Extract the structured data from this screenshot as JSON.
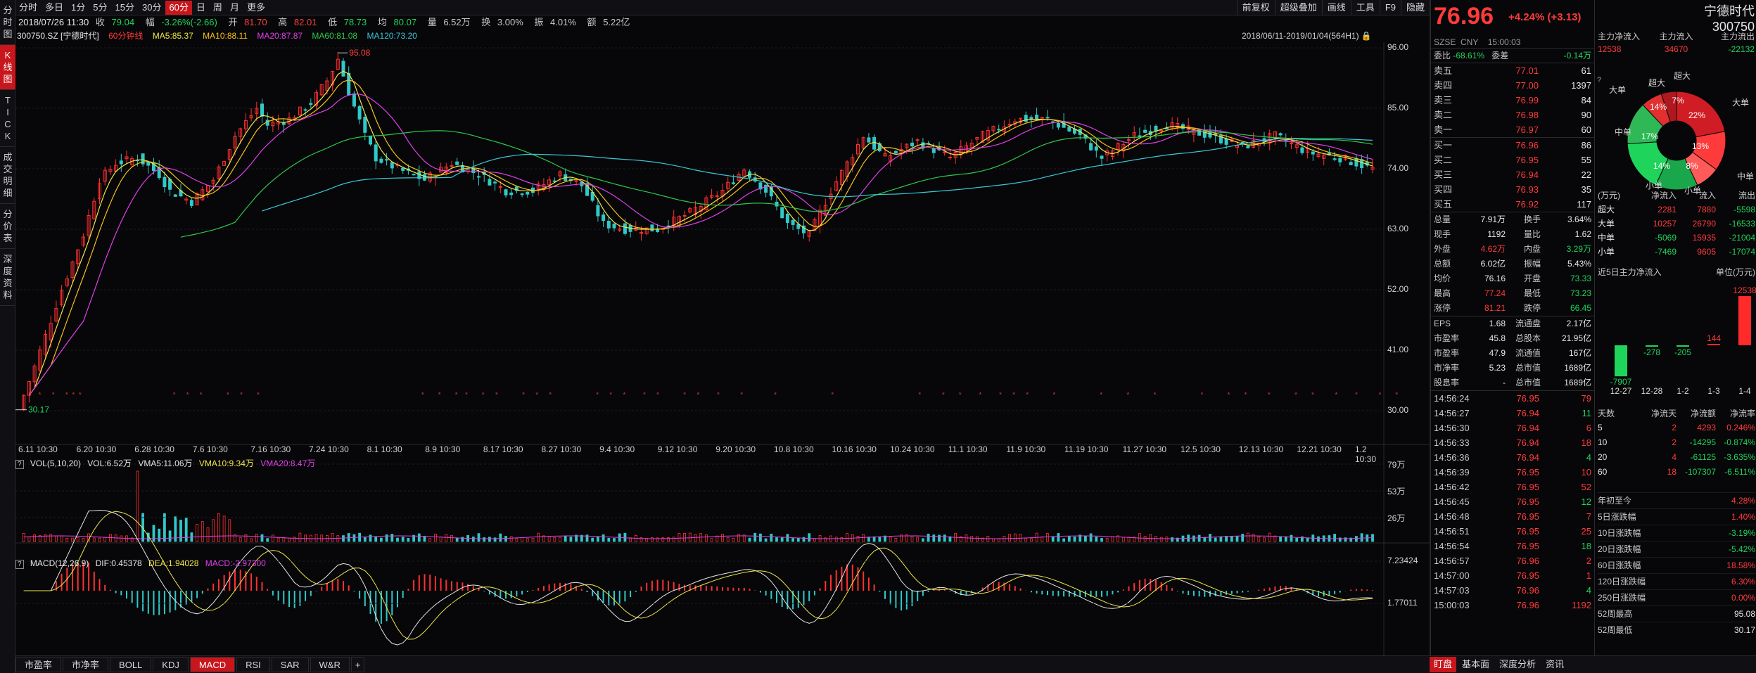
{
  "left_nav": [
    "分时图",
    "K线图",
    "TICK",
    "成交明细",
    "分价表",
    "深度资料"
  ],
  "left_nav_active": 1,
  "toolbar": {
    "periods": [
      "分时",
      "多日",
      "1分",
      "5分",
      "15分",
      "30分",
      "60分",
      "日",
      "周",
      "月",
      "更多"
    ],
    "active": 6,
    "right": [
      "前复权",
      "超级叠加",
      "画线",
      "工具",
      "F9",
      "隐藏"
    ]
  },
  "quote": {
    "date": "2018/07/26 11:30",
    "close_label": "收",
    "close": "79.04",
    "chg_label": "幅",
    "chg": "-3.26%(-2.66)",
    "open_label": "开",
    "open": "81.70",
    "high_label": "高",
    "high": "82.01",
    "low_label": "低",
    "low": "78.73",
    "avg_label": "均",
    "avg": "80.07",
    "vol_label": "量",
    "vol": "6.52万",
    "turn_label": "换",
    "turn": "3.00%",
    "amp_label": "振",
    "amp": "4.01%",
    "amt_label": "额",
    "amt": "5.22亿"
  },
  "ma_legend": {
    "symbol": "300750.SZ [宁德时代]",
    "kind": "60分钟线",
    "ma5": "MA5:85.37",
    "ma10": "MA10:88.11",
    "ma20": "MA20:87.87",
    "ma60": "MA60:81.08",
    "ma120": "MA120:73.20"
  },
  "date_range": "2018/06/11-2019/01/04(564H1)",
  "annotations": {
    "high": "95.08",
    "low": "30.17"
  },
  "chart_data": {
    "type": "line",
    "price_axis": [
      "96.00",
      "85.00",
      "74.00",
      "63.00",
      "52.00",
      "41.00",
      "30.00"
    ],
    "x_labels": [
      "6.11 10:30",
      "6.20 10:30",
      "6.28 10:30",
      "7.6 10:30",
      "7.16 10:30",
      "7.24 10:30",
      "8.1 10:30",
      "8.9 10:30",
      "8.17 10:30",
      "8.27 10:30",
      "9.4 10:30",
      "9.12 10:30",
      "9.20 10:30",
      "10.8 10:30",
      "10.16 10:30",
      "10.24 10:30",
      "11.1 10:30",
      "11.9 10:30",
      "11.19 10:30",
      "11.27 10:30",
      "12.5 10:30",
      "12.13 10:30",
      "12.21 10:30",
      "1.2 10:30"
    ],
    "price_keypoints": [
      [
        0,
        30.2
      ],
      [
        3,
        38
      ],
      [
        8,
        52
      ],
      [
        12,
        62
      ],
      [
        15,
        72
      ],
      [
        18,
        75
      ],
      [
        22,
        76
      ],
      [
        26,
        73
      ],
      [
        28,
        70
      ],
      [
        32,
        68
      ],
      [
        36,
        72
      ],
      [
        40,
        80
      ],
      [
        44,
        85
      ],
      [
        46,
        82
      ],
      [
        50,
        83
      ],
      [
        54,
        86
      ],
      [
        57,
        90
      ],
      [
        59,
        94
      ],
      [
        61,
        88
      ],
      [
        64,
        80
      ],
      [
        66,
        76
      ],
      [
        70,
        74
      ],
      [
        75,
        72
      ],
      [
        80,
        75
      ],
      [
        85,
        73
      ],
      [
        90,
        70
      ],
      [
        95,
        70
      ],
      [
        100,
        73
      ],
      [
        104,
        71
      ],
      [
        108,
        64
      ],
      [
        112,
        63
      ],
      [
        118,
        63
      ],
      [
        124,
        66
      ],
      [
        130,
        70
      ],
      [
        134,
        74
      ],
      [
        138,
        70
      ],
      [
        142,
        64
      ],
      [
        146,
        62
      ],
      [
        150,
        70
      ],
      [
        156,
        80
      ],
      [
        160,
        76
      ],
      [
        166,
        79
      ],
      [
        172,
        76
      ],
      [
        178,
        80
      ],
      [
        184,
        83
      ],
      [
        190,
        83
      ],
      [
        196,
        80
      ],
      [
        200,
        76
      ],
      [
        206,
        80
      ],
      [
        212,
        82
      ],
      [
        220,
        80
      ],
      [
        226,
        78
      ],
      [
        232,
        80
      ],
      [
        238,
        77
      ],
      [
        244,
        76
      ],
      [
        250,
        74
      ]
    ],
    "volume_axis": [
      "79万",
      "53万",
      "26万"
    ],
    "macd_axis": [
      "7.23424",
      "1.77011"
    ]
  },
  "vol_legend": {
    "label": "VOL(5,10,20)",
    "vol": "VOL:6.52万",
    "vma5": "VMA5:11.06万",
    "vma10": "VMA10:9.34万",
    "vma20": "VMA20:8.47万"
  },
  "macd_legend": {
    "label": "MACD(12,26,9)",
    "dif": "DIF:0.45378",
    "dea": "DEA:1.94028",
    "macd": "MACD:-2.97300"
  },
  "bottom_tabs": [
    "市盈率",
    "市净率",
    "BOLL",
    "KDJ",
    "MACD",
    "RSI",
    "SAR",
    "W&R"
  ],
  "bottom_active": 4,
  "stock": {
    "price": "76.96",
    "change": "+4.24% (+3.13)",
    "name": "宁德时代",
    "code": "300750",
    "market": "SZSE",
    "currency": "CNY",
    "time": "15:00:03"
  },
  "wei": {
    "ratio_label": "委比",
    "ratio": "-68.61%",
    "diff_label": "委差",
    "diff": "-0.14万"
  },
  "asks": [
    [
      "卖五",
      "77.01",
      "61"
    ],
    [
      "卖四",
      "77.00",
      "1397"
    ],
    [
      "卖三",
      "76.99",
      "84"
    ],
    [
      "卖二",
      "76.98",
      "90"
    ],
    [
      "卖一",
      "76.97",
      "60"
    ]
  ],
  "bids": [
    [
      "买一",
      "76.96",
      "86"
    ],
    [
      "买二",
      "76.95",
      "55"
    ],
    [
      "买三",
      "76.94",
      "22"
    ],
    [
      "买四",
      "76.93",
      "35"
    ],
    [
      "买五",
      "76.92",
      "117"
    ]
  ],
  "stats": [
    [
      "总量",
      "7.91万",
      "换手",
      "3.64%"
    ],
    [
      "现手",
      "1192",
      "量比",
      "1.62"
    ],
    [
      "外盘",
      "4.62万",
      "内盘",
      "3.29万"
    ],
    [
      "总额",
      "6.02亿",
      "振幅",
      "5.43%"
    ],
    [
      "均价",
      "76.16",
      "开盘",
      "73.33"
    ],
    [
      "最高",
      "77.24",
      "最低",
      "73.23"
    ],
    [
      "涨停",
      "81.21",
      "跌停",
      "66.45"
    ]
  ],
  "fund": [
    [
      "EPS",
      "1.68",
      "流通盘",
      "2.17亿"
    ],
    [
      "市盈率",
      "45.8",
      "总股本",
      "21.95亿"
    ],
    [
      "市盈率",
      "47.9",
      "流通值",
      "167亿"
    ],
    [
      "市净率",
      "5.23",
      "总市值",
      "1689亿"
    ],
    [
      "股息率",
      "-",
      "总市值",
      "1689亿"
    ]
  ],
  "mainflow": {
    "h1": "主力净流入",
    "h2": "主力流入",
    "h3": "主力流出",
    "v1": "12538",
    "v2": "34670",
    "v3": "-22132"
  },
  "pie": {
    "labels": [
      "超大",
      "大单",
      "中单",
      "小单",
      "小单",
      "中单",
      "大单",
      "超大"
    ],
    "pcts": [
      "22%",
      "13%",
      "8%",
      "14%",
      "17%",
      "14%",
      "7%"
    ]
  },
  "flow_table": {
    "headers": [
      "(万元)",
      "净流入",
      "流入",
      "流出"
    ],
    "rows": [
      [
        "超大",
        "2281",
        "7880",
        "-5598"
      ],
      [
        "大单",
        "10257",
        "26790",
        "-16533"
      ],
      [
        "中单",
        "-5069",
        "15935",
        "-21004"
      ],
      [
        "小单",
        "-7469",
        "9605",
        "-17074"
      ]
    ]
  },
  "five_day": {
    "title": "近5日主力净流入",
    "unit": "单位(万元)",
    "values": [
      -7907,
      -278,
      -205,
      144,
      12538
    ],
    "labels": [
      "-7907",
      "-278",
      "-205",
      "144",
      "12538"
    ],
    "dates": [
      "12-27",
      "12-28",
      "1-2",
      "1-3",
      "1-4"
    ]
  },
  "days_table": {
    "headers": [
      "天数",
      "净流天",
      "净流额",
      "净流率"
    ],
    "rows": [
      [
        "5",
        "2",
        "4293",
        "0.246%"
      ],
      [
        "10",
        "2",
        "-14295",
        "-0.874%"
      ],
      [
        "20",
        "4",
        "-61125",
        "-3.635%"
      ],
      [
        "60",
        "18",
        "-107307",
        "-6.511%"
      ]
    ]
  },
  "perf": [
    [
      "年初至今",
      "4.28%"
    ],
    [
      "5日涨跌幅",
      "1.40%"
    ],
    [
      "10日涨跌幅",
      "-3.19%"
    ],
    [
      "20日涨跌幅",
      "-5.42%"
    ],
    [
      "60日涨跌幅",
      "18.58%"
    ],
    [
      "120日涨跌幅",
      "6.30%"
    ],
    [
      "250日涨跌幅",
      "0.00%"
    ],
    [
      "52周最高",
      "95.08"
    ],
    [
      "52周最低",
      "30.17"
    ]
  ],
  "ticks": [
    [
      "14:56:24",
      "76.95",
      "79"
    ],
    [
      "14:56:27",
      "76.94",
      "11"
    ],
    [
      "14:56:30",
      "76.94",
      "6"
    ],
    [
      "14:56:33",
      "76.94",
      "18"
    ],
    [
      "14:56:36",
      "76.94",
      "4"
    ],
    [
      "14:56:39",
      "76.95",
      "10"
    ],
    [
      "14:56:42",
      "76.95",
      "52"
    ],
    [
      "14:56:45",
      "76.95",
      "12"
    ],
    [
      "14:56:48",
      "76.95",
      "7"
    ],
    [
      "14:56:51",
      "76.95",
      "25"
    ],
    [
      "14:56:54",
      "76.95",
      "18"
    ],
    [
      "14:56:57",
      "76.96",
      "2"
    ],
    [
      "14:57:00",
      "76.95",
      "1"
    ],
    [
      "14:57:03",
      "76.96",
      "4"
    ],
    [
      "15:00:03",
      "76.96",
      "1192"
    ]
  ],
  "right_tabs": [
    "盯盘",
    "基本面",
    "深度分析",
    "资讯"
  ],
  "right_active": 0
}
